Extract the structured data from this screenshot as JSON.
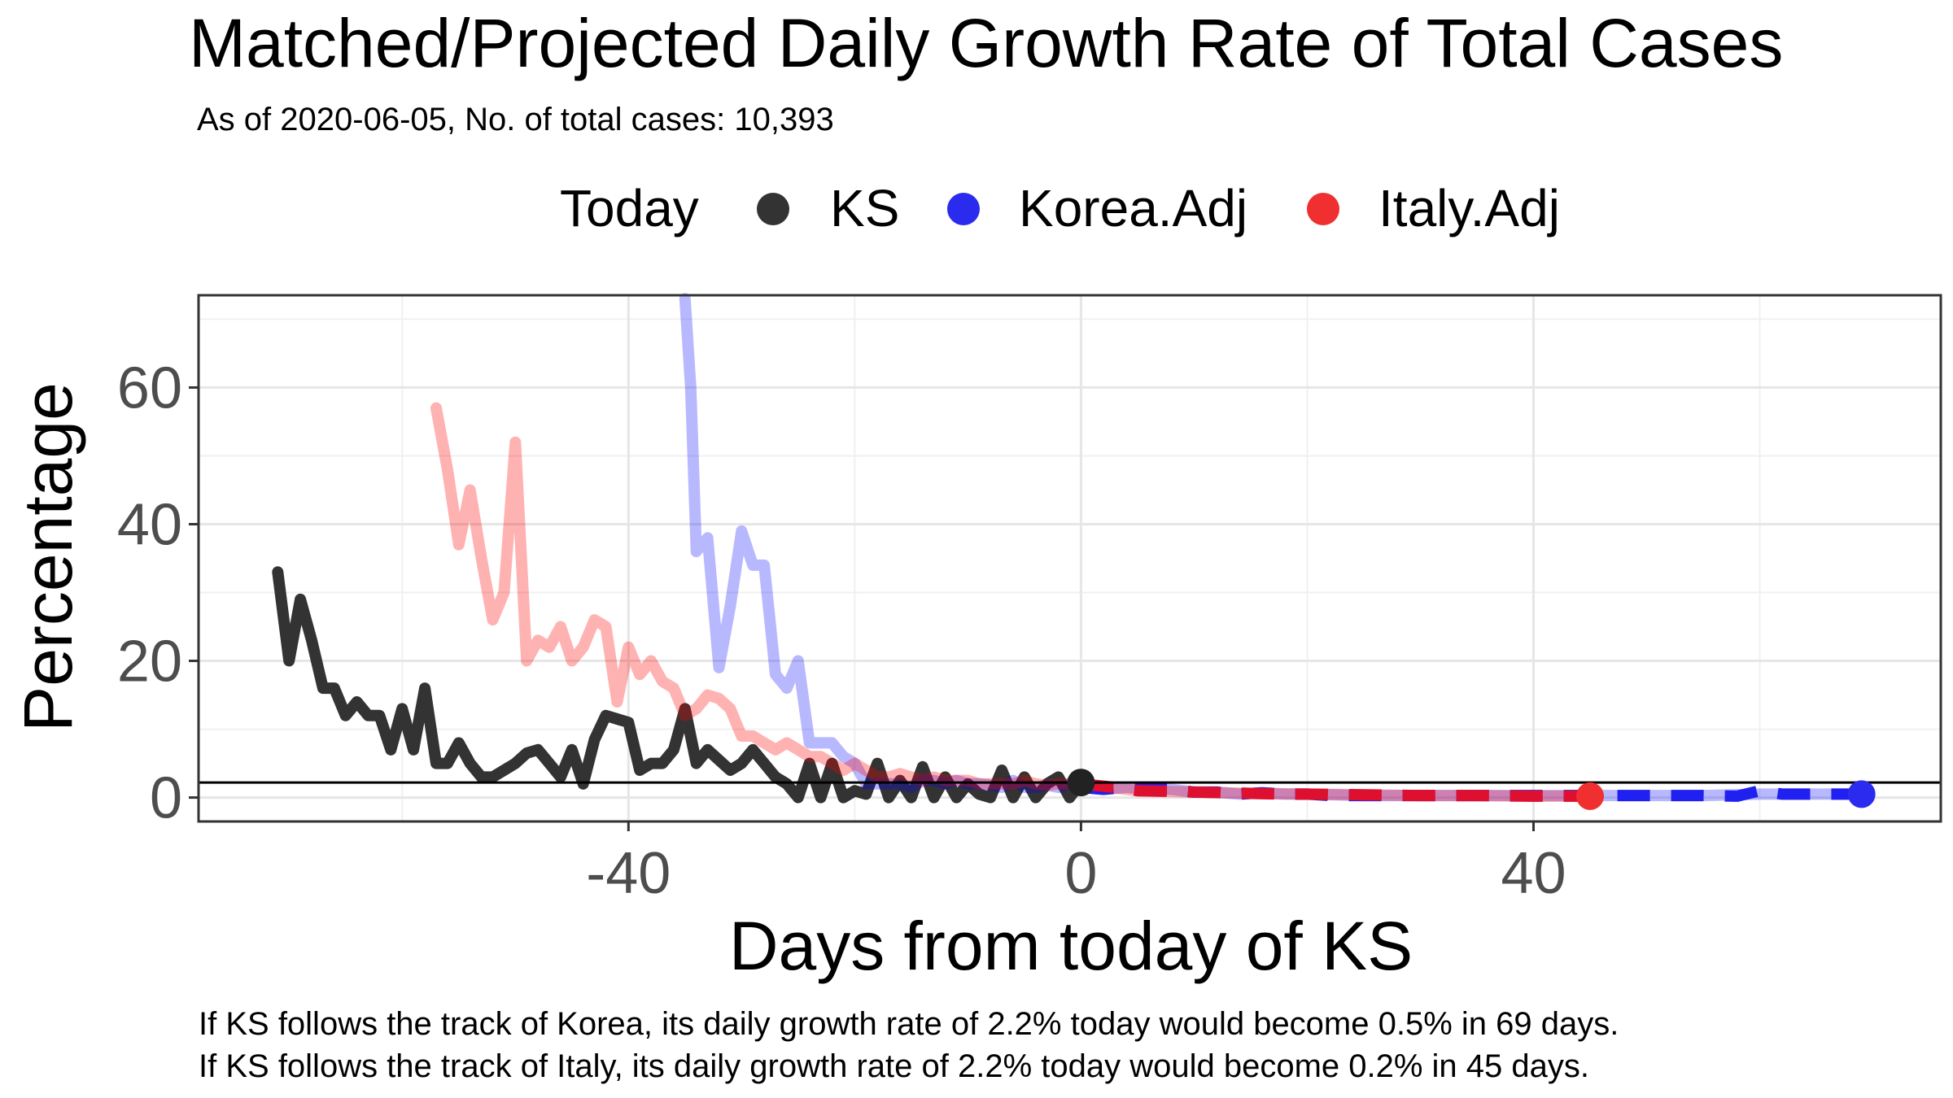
{
  "title": "Matched/Projected Daily Growth Rate of Total Cases",
  "subtitle": "As of 2020-06-05, No. of total cases: 10,393",
  "legend": {
    "title": "Today",
    "position": "top",
    "items": [
      {
        "label": "KS",
        "color": "#333333"
      },
      {
        "label": "Korea.Adj",
        "color": "#2b2bf0"
      },
      {
        "label": "Italy.Adj",
        "color": "#f03030"
      }
    ]
  },
  "footnotes": [
    "If KS follows the track of Korea, its daily growth rate of 2.2% today would become 0.5% in 69 days.",
    "If KS follows the track of Italy, its daily growth rate of 2.2% today would become 0.2% in 45 days."
  ],
  "chart_data": {
    "type": "line",
    "xlabel": "Days from today of KS",
    "ylabel": "Percentage",
    "xlim": [
      -78,
      76
    ],
    "ylim": [
      -3.5,
      73.5
    ],
    "xticks": [
      -40,
      0,
      40
    ],
    "yticks": [
      0,
      20,
      40,
      60
    ],
    "grid": true,
    "hline": 2.2,
    "series": [
      {
        "name": "KS",
        "color": "#333333",
        "opacity": 1,
        "dashed": false,
        "points": [
          [
            -71,
            33
          ],
          [
            -70,
            20
          ],
          [
            -69,
            29
          ],
          [
            -68,
            23
          ],
          [
            -67,
            16
          ],
          [
            -66,
            16
          ],
          [
            -65,
            12
          ],
          [
            -64,
            14
          ],
          [
            -63,
            12
          ],
          [
            -62,
            12
          ],
          [
            -61,
            7
          ],
          [
            -60,
            13
          ],
          [
            -59,
            7
          ],
          [
            -58,
            16
          ],
          [
            -57,
            5
          ],
          [
            -56,
            5
          ],
          [
            -55,
            8
          ],
          [
            -54,
            5
          ],
          [
            -53,
            3
          ],
          [
            -52,
            3
          ],
          [
            -51,
            4
          ],
          [
            -50,
            5
          ],
          [
            -49,
            6.5
          ],
          [
            -48,
            7
          ],
          [
            -47,
            5
          ],
          [
            -46,
            3
          ],
          [
            -45,
            7
          ],
          [
            -44,
            2
          ],
          [
            -43,
            8.5
          ],
          [
            -42,
            12
          ],
          [
            -41,
            11.5
          ],
          [
            -40,
            11
          ],
          [
            -39,
            4
          ],
          [
            -38,
            5
          ],
          [
            -37,
            5
          ],
          [
            -36,
            7
          ],
          [
            -35,
            13
          ],
          [
            -34,
            5
          ],
          [
            -33,
            7
          ],
          [
            -32,
            5.5
          ],
          [
            -31,
            4
          ],
          [
            -30,
            5
          ],
          [
            -29,
            7
          ],
          [
            -28,
            5
          ],
          [
            -27,
            3
          ],
          [
            -26,
            2
          ],
          [
            -25,
            0
          ],
          [
            -24,
            5
          ],
          [
            -23,
            0
          ],
          [
            -22,
            5
          ],
          [
            -21,
            0
          ],
          [
            -20,
            1
          ],
          [
            -19,
            0.5
          ],
          [
            -18,
            5
          ],
          [
            -17,
            0
          ],
          [
            -16,
            2.5
          ],
          [
            -15,
            0
          ],
          [
            -14,
            4.5
          ],
          [
            -13,
            0
          ],
          [
            -12,
            3
          ],
          [
            -11,
            0
          ],
          [
            -10,
            2
          ],
          [
            -9,
            0.5
          ],
          [
            -8,
            0
          ],
          [
            -7,
            4
          ],
          [
            -6,
            0
          ],
          [
            -5,
            3
          ],
          [
            -4,
            0
          ],
          [
            -3,
            2
          ],
          [
            -2,
            3
          ],
          [
            -1,
            0
          ],
          [
            0,
            2.2
          ]
        ]
      },
      {
        "name": "KS.today",
        "color": "#222222",
        "opacity": 1,
        "dashed": false,
        "points": [
          [
            0,
            2.2
          ]
        ]
      },
      {
        "name": "Korea.Adj",
        "color": "#0000ff",
        "opacity": 0.28,
        "dashed": false,
        "points": [
          [
            -35,
            73
          ],
          [
            -34.5,
            60
          ],
          [
            -34,
            36
          ],
          [
            -33,
            38
          ],
          [
            -32,
            19
          ],
          [
            -31,
            28
          ],
          [
            -30,
            39
          ],
          [
            -29,
            34
          ],
          [
            -28,
            34
          ],
          [
            -27,
            18
          ],
          [
            -26,
            16
          ],
          [
            -25,
            20
          ],
          [
            -24,
            8
          ],
          [
            -23,
            8
          ],
          [
            -22,
            8
          ],
          [
            -21,
            6
          ],
          [
            -20,
            5
          ],
          [
            -19,
            2
          ],
          [
            -18,
            2
          ],
          [
            -17,
            2
          ],
          [
            -16,
            2
          ],
          [
            -15,
            1.5
          ],
          [
            -14,
            2.5
          ],
          [
            -13,
            2.5
          ],
          [
            -12,
            2
          ],
          [
            -11,
            2.5
          ],
          [
            -10,
            2
          ],
          [
            -9,
            2
          ],
          [
            -8,
            1.8
          ],
          [
            -7,
            1.5
          ],
          [
            -6,
            2.5
          ],
          [
            -5,
            1.5
          ],
          [
            -4,
            1.5
          ],
          [
            -3,
            1.8
          ],
          [
            -2,
            1.5
          ],
          [
            -1,
            2
          ],
          [
            0,
            1.5
          ],
          [
            2,
            1.2
          ],
          [
            4,
            1.5
          ],
          [
            6,
            1.2
          ],
          [
            8,
            1.2
          ],
          [
            10,
            0.8
          ],
          [
            12,
            0.8
          ],
          [
            14,
            0.5
          ],
          [
            16,
            0.7
          ],
          [
            18,
            0.5
          ],
          [
            20,
            0.5
          ],
          [
            25,
            0.3
          ],
          [
            30,
            0.3
          ],
          [
            35,
            0.3
          ],
          [
            40,
            0.3
          ],
          [
            45,
            0.3
          ],
          [
            50,
            0.3
          ],
          [
            55,
            0.3
          ],
          [
            60,
            0.5
          ],
          [
            65,
            0.5
          ],
          [
            69,
            0.5
          ]
        ]
      },
      {
        "name": "Korea.Adj.projected",
        "color": "#2020f0",
        "opacity": 1,
        "dashed": true,
        "points": [
          [
            0,
            1.5
          ],
          [
            2,
            1.2
          ],
          [
            4,
            1.5
          ],
          [
            6,
            1.2
          ],
          [
            8,
            1.2
          ],
          [
            10,
            0.8
          ],
          [
            12,
            0.8
          ],
          [
            14,
            0.5
          ],
          [
            16,
            0.7
          ],
          [
            18,
            0.5
          ],
          [
            20,
            0.5
          ],
          [
            22,
            0.3
          ],
          [
            25,
            0.3
          ],
          [
            30,
            0.3
          ],
          [
            35,
            0.3
          ],
          [
            40,
            0.3
          ],
          [
            45,
            0.3
          ],
          [
            50,
            0.3
          ],
          [
            55,
            0.3
          ],
          [
            58,
            0.2
          ],
          [
            60,
            1
          ],
          [
            62,
            0.5
          ],
          [
            65,
            0.5
          ],
          [
            69,
            0.5
          ]
        ]
      },
      {
        "name": "Korea.Adj.today",
        "color": "#2b2bf0",
        "opacity": 1,
        "dashed": false,
        "points": [
          [
            69,
            0.5
          ]
        ]
      },
      {
        "name": "Italy.Adj",
        "color": "#ff0000",
        "opacity": 0.3,
        "dashed": false,
        "points": [
          [
            -57,
            57
          ],
          [
            -56,
            48
          ],
          [
            -55,
            37
          ],
          [
            -54,
            45
          ],
          [
            -53,
            35
          ],
          [
            -52,
            26
          ],
          [
            -51,
            30
          ],
          [
            -50,
            52
          ],
          [
            -49,
            20
          ],
          [
            -48,
            23
          ],
          [
            -47,
            22
          ],
          [
            -46,
            25
          ],
          [
            -45,
            20
          ],
          [
            -44,
            22
          ],
          [
            -43,
            26
          ],
          [
            -42,
            25
          ],
          [
            -41,
            14
          ],
          [
            -40,
            22
          ],
          [
            -39,
            18
          ],
          [
            -38,
            20
          ],
          [
            -37,
            17
          ],
          [
            -36,
            16
          ],
          [
            -35,
            12
          ],
          [
            -34,
            13
          ],
          [
            -33,
            15
          ],
          [
            -32,
            14.5
          ],
          [
            -31,
            13
          ],
          [
            -30,
            9
          ],
          [
            -29,
            9
          ],
          [
            -28,
            8
          ],
          [
            -27,
            7
          ],
          [
            -26,
            8
          ],
          [
            -25,
            7
          ],
          [
            -24,
            6
          ],
          [
            -23,
            6
          ],
          [
            -22,
            5
          ],
          [
            -21,
            4
          ],
          [
            -20,
            5
          ],
          [
            -19,
            4
          ],
          [
            -18,
            3
          ],
          [
            -17,
            3
          ],
          [
            -16,
            3.5
          ],
          [
            -15,
            3
          ],
          [
            -14,
            2.5
          ],
          [
            -13,
            3
          ],
          [
            -12,
            2.5
          ],
          [
            -11,
            2.5
          ],
          [
            -10,
            2.5
          ],
          [
            -9,
            2
          ],
          [
            -8,
            2
          ],
          [
            -7,
            2
          ],
          [
            -6,
            2
          ],
          [
            -5,
            2.5
          ],
          [
            -4,
            2
          ],
          [
            -3,
            1.8
          ],
          [
            -2,
            2
          ],
          [
            -1,
            2
          ],
          [
            0,
            2
          ],
          [
            5,
            1
          ],
          [
            10,
            0.8
          ],
          [
            15,
            0.6
          ],
          [
            20,
            0.5
          ],
          [
            25,
            0.4
          ],
          [
            30,
            0.3
          ],
          [
            35,
            0.3
          ],
          [
            40,
            0.2
          ],
          [
            45,
            0.2
          ]
        ]
      },
      {
        "name": "Italy.Adj.projected",
        "color": "#dd1030",
        "opacity": 1,
        "dashed": true,
        "points": [
          [
            0,
            2
          ],
          [
            3,
            1.5
          ],
          [
            5,
            1
          ],
          [
            8,
            0.9
          ],
          [
            10,
            0.8
          ],
          [
            13,
            0.7
          ],
          [
            15,
            0.6
          ],
          [
            18,
            0.5
          ],
          [
            20,
            0.5
          ],
          [
            25,
            0.4
          ],
          [
            30,
            0.3
          ],
          [
            35,
            0.3
          ],
          [
            40,
            0.2
          ],
          [
            45,
            0.2
          ]
        ]
      },
      {
        "name": "Italy.Adj.today",
        "color": "#f03030",
        "opacity": 1,
        "dashed": false,
        "points": [
          [
            45,
            0.2
          ]
        ]
      }
    ]
  }
}
